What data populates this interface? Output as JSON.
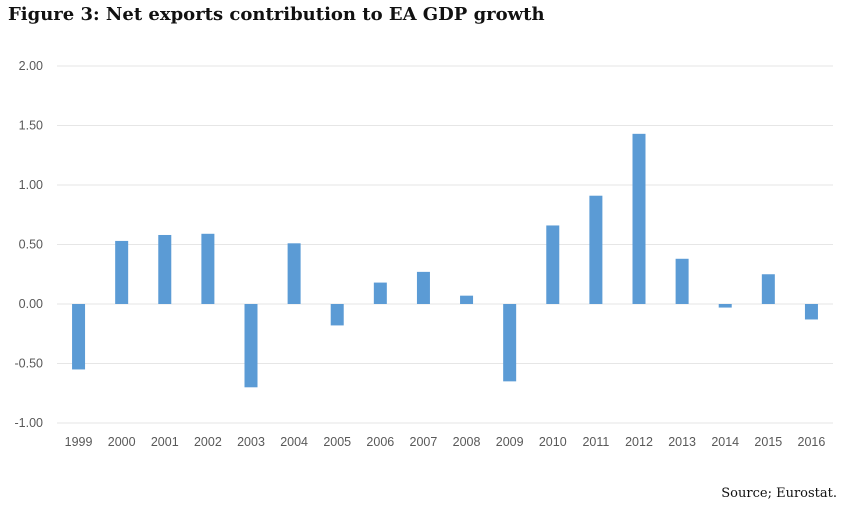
{
  "title": "Figure 3: Net exports contribution to EA GDP growth",
  "source": "Source; Eurostat.",
  "chart_data": {
    "type": "bar",
    "title": "Figure 3: Net exports contribution to EA GDP growth",
    "xlabel": "",
    "ylabel": "",
    "ylim": [
      -1.0,
      2.0
    ],
    "yticks": [
      "2.00",
      "1.50",
      "1.00",
      "0.50",
      "0.00",
      "-0.50",
      "-1.00"
    ],
    "ytick_values": [
      2.0,
      1.5,
      1.0,
      0.5,
      0.0,
      -0.5,
      -1.0
    ],
    "grid": true,
    "legend": "none",
    "color": "#5b9bd5",
    "categories": [
      "1999",
      "2000",
      "2001",
      "2002",
      "2003",
      "2004",
      "2005",
      "2006",
      "2007",
      "2008",
      "2009",
      "2010",
      "2011",
      "2012",
      "2013",
      "2014",
      "2015",
      "2016"
    ],
    "values": [
      -0.55,
      0.53,
      0.58,
      0.59,
      -0.7,
      0.51,
      -0.18,
      0.18,
      0.27,
      0.07,
      -0.65,
      0.66,
      0.91,
      1.43,
      0.38,
      -0.03,
      0.25,
      -0.13
    ]
  }
}
